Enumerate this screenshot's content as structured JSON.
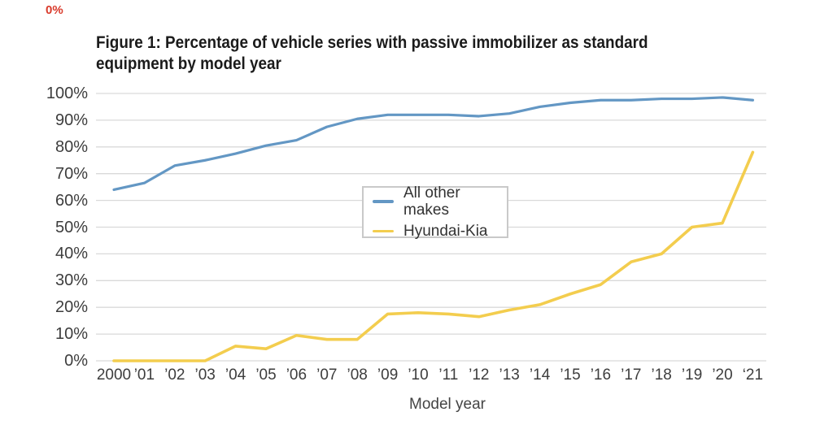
{
  "page": {
    "stray_label": "0%"
  },
  "figure": {
    "title_line1": "Figure 1: Percentage of vehicle series with passive immobilizer as standard",
    "title_line2": "equipment by model year"
  },
  "chart_data": {
    "type": "line",
    "title": "Figure 1: Percentage of vehicle series with passive immobilizer as standard equipment by model year",
    "xlabel": "Model year",
    "ylabel": "",
    "ylim": [
      0,
      100
    ],
    "grid": "horizontal-only",
    "gridline_color": "#d9d9d9",
    "legend_position": "center-inside",
    "categories": [
      "2000",
      "2001",
      "2002",
      "2003",
      "2004",
      "2005",
      "2006",
      "2007",
      "2008",
      "2009",
      "2010",
      "2011",
      "2012",
      "2013",
      "2014",
      "2015",
      "2016",
      "2017",
      "2018",
      "2019",
      "2020",
      "2021"
    ],
    "x_tick_labels": [
      "2000",
      "’01",
      "’02",
      "’03",
      "’04",
      "’05",
      "’06",
      "’07",
      "’08",
      "’09",
      "’10",
      "’11",
      "’12",
      "’13",
      "’14",
      "’15",
      "’16",
      "’17",
      "’18",
      "’19",
      "’20",
      "‘21"
    ],
    "y_tick_labels": [
      "0%",
      "10%",
      "20%",
      "30%",
      "40%",
      "50%",
      "60%",
      "70%",
      "80%",
      "90%",
      "100%"
    ],
    "series": [
      {
        "name": "All other makes",
        "color": "#6397c4",
        "values": [
          64,
          66.5,
          73,
          75,
          77.5,
          80.5,
          82.5,
          87.5,
          90.5,
          92,
          92,
          92,
          91.5,
          92.5,
          95,
          96.5,
          97.5,
          97.5,
          98,
          98,
          98.5,
          97.5
        ]
      },
      {
        "name": "Hyundai-Kia",
        "color": "#f3cd4e",
        "values": [
          0,
          0,
          0,
          0,
          5.5,
          4.5,
          9.5,
          8,
          8,
          17.5,
          18,
          17.5,
          16.5,
          19,
          21,
          25,
          28.5,
          37,
          40,
          50,
          51.5,
          78
        ]
      }
    ]
  }
}
